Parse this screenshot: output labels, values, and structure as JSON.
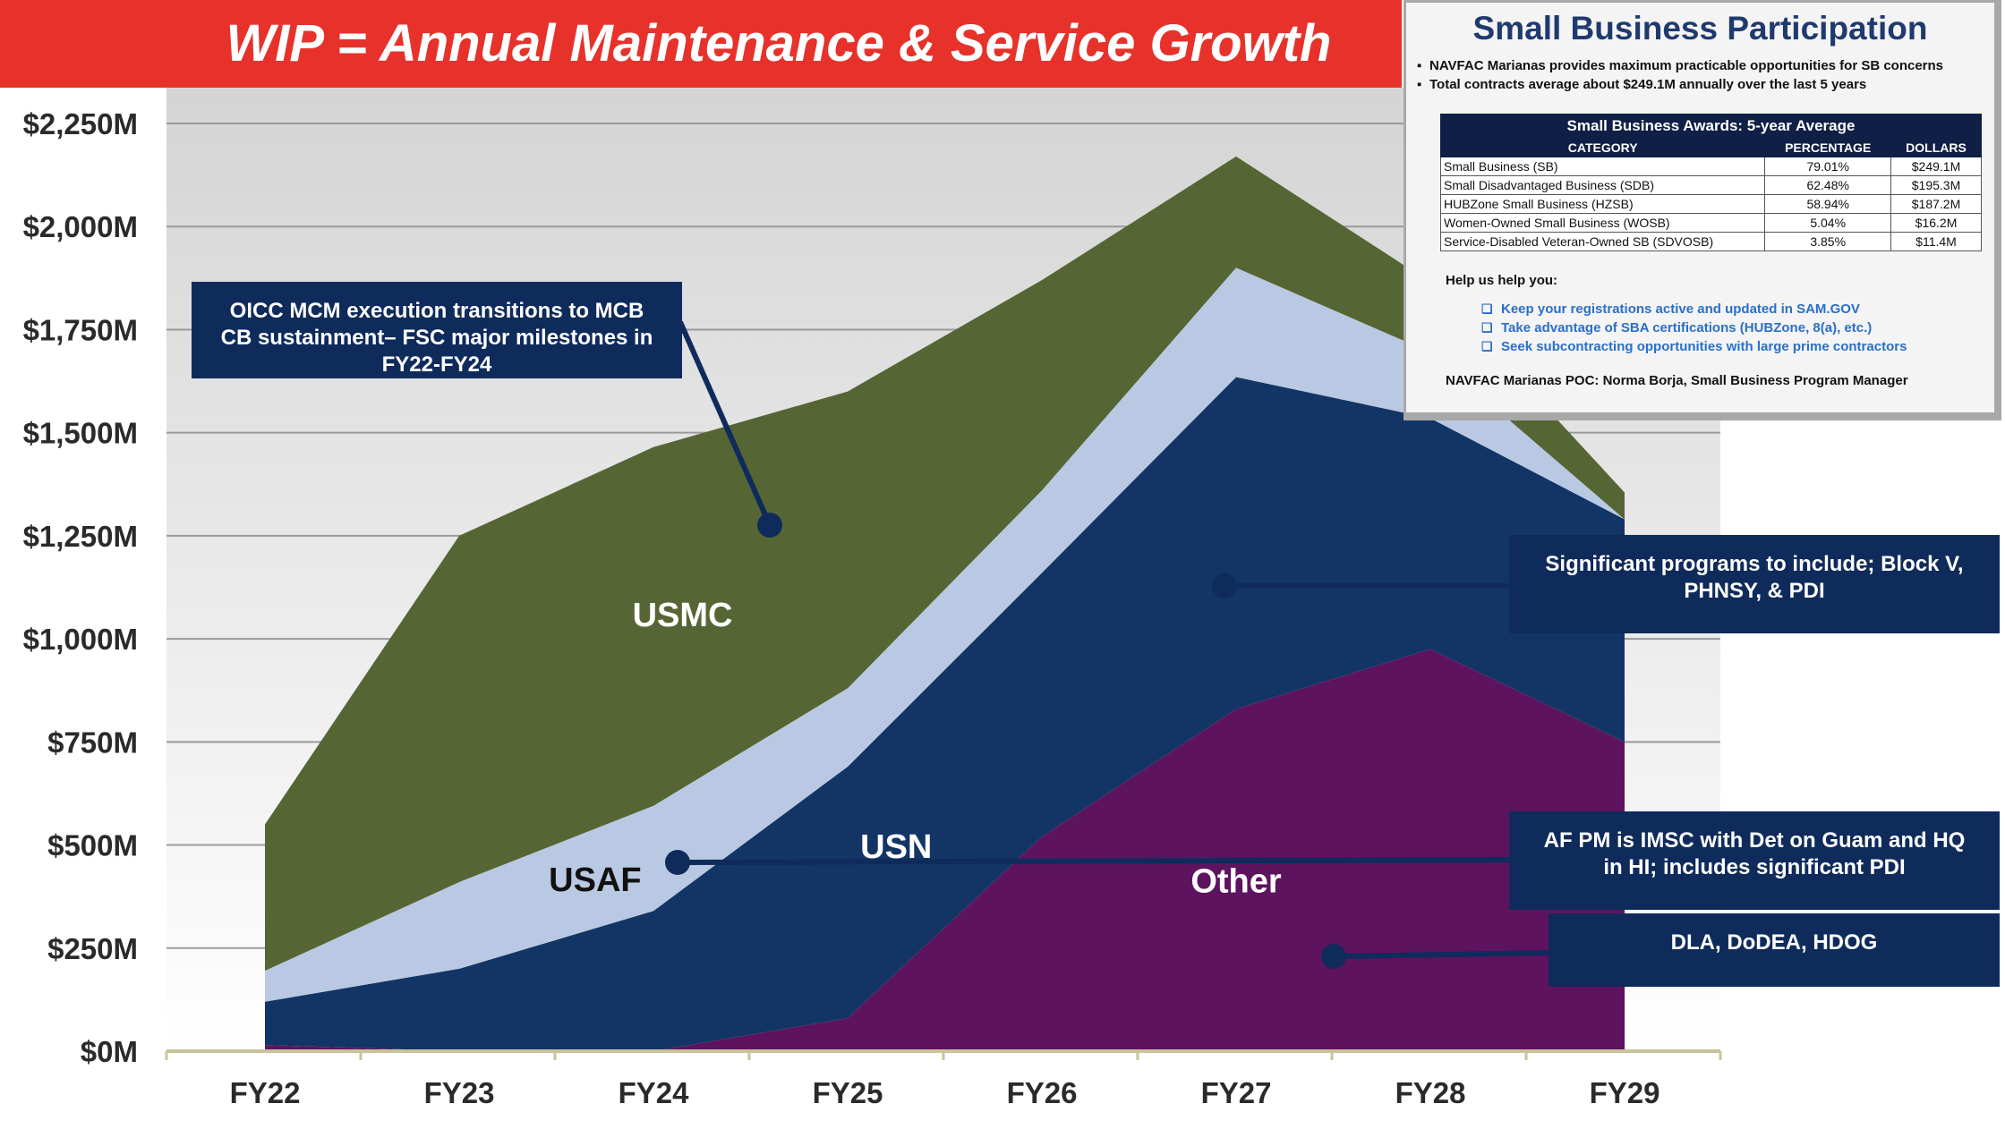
{
  "banner": {
    "title": "WIP = Annual Maintenance & Service Growth"
  },
  "chart_data": {
    "type": "area",
    "stacked": true,
    "categories": [
      "FY22",
      "FY23",
      "FY24",
      "FY25",
      "FY26",
      "FY27",
      "FY28",
      "FY29"
    ],
    "ylim": [
      0,
      2250
    ],
    "yticks": [
      0,
      250,
      500,
      750,
      1000,
      1250,
      1500,
      1750,
      2000,
      2250
    ],
    "ytick_labels": [
      "$0M",
      "$250M",
      "$500M",
      "$750M",
      "$1,000M",
      "$1,250M",
      "$1,500M",
      "$1,750M",
      "$2,000M",
      "$2,250M"
    ],
    "grid": true,
    "series": [
      {
        "name": "Other",
        "values": [
          15,
          0,
          0,
          80,
          520,
          830,
          975,
          750
        ],
        "color": "#5e135e",
        "label_color": "#ffffff"
      },
      {
        "name": "USN",
        "values": [
          105,
          200,
          340,
          610,
          640,
          805,
          560,
          540
        ],
        "color": "#133566",
        "label_color": "#ffffff"
      },
      {
        "name": "USAF",
        "values": [
          75,
          210,
          255,
          190,
          200,
          265,
          160,
          0
        ],
        "color": "#bac9e3",
        "label_color": "#111111"
      },
      {
        "name": "USMC",
        "values": [
          355,
          840,
          870,
          720,
          510,
          270,
          170,
          65
        ],
        "color": "#566534",
        "label_color": "#ffffff"
      }
    ]
  },
  "callouts": {
    "oicc": "OICC MCM execution transitions to MCB CB  sustainment– FSC major milestones in FY22-FY24",
    "usn": "Significant programs to include; Block V, PHNSY, & PDI",
    "usaf": "AF PM is IMSC with Det on Guam and HQ in HI; includes significant PDI",
    "other": "DLA, DoDEA, HDOG"
  },
  "sb_panel": {
    "title": "Small Business Participation",
    "bullets": [
      "NAVFAC Marianas provides maximum practicable opportunities for SB concerns",
      "Total contracts average about $249.1M annually over the last 5 years"
    ],
    "table": {
      "title": "Small Business Awards: 5-year Average",
      "headers": [
        "CATEGORY",
        "PERCENTAGE",
        "DOLLARS"
      ],
      "rows": [
        [
          "Small Business (SB)",
          "79.01%",
          "$249.1M"
        ],
        [
          "Small Disadvantaged Business (SDB)",
          "62.48%",
          "$195.3M"
        ],
        [
          "HUBZone Small Business (HZSB)",
          "58.94%",
          "$187.2M"
        ],
        [
          "Women-Owned Small Business (WOSB)",
          "5.04%",
          "$16.2M"
        ],
        [
          "Service-Disabled Veteran-Owned SB (SDVOSB)",
          "3.85%",
          "$11.4M"
        ]
      ]
    },
    "help_title": "Help us help you:",
    "tips": [
      "Keep your registrations active and updated in SAM.GOV",
      "Take advantage of SBA certifications (HUBZone, 8(a), etc.)",
      "Seek subcontracting opportunities with large prime contractors"
    ],
    "poc": "NAVFAC Marianas POC: Norma Borja, Small Business Program Manager"
  }
}
